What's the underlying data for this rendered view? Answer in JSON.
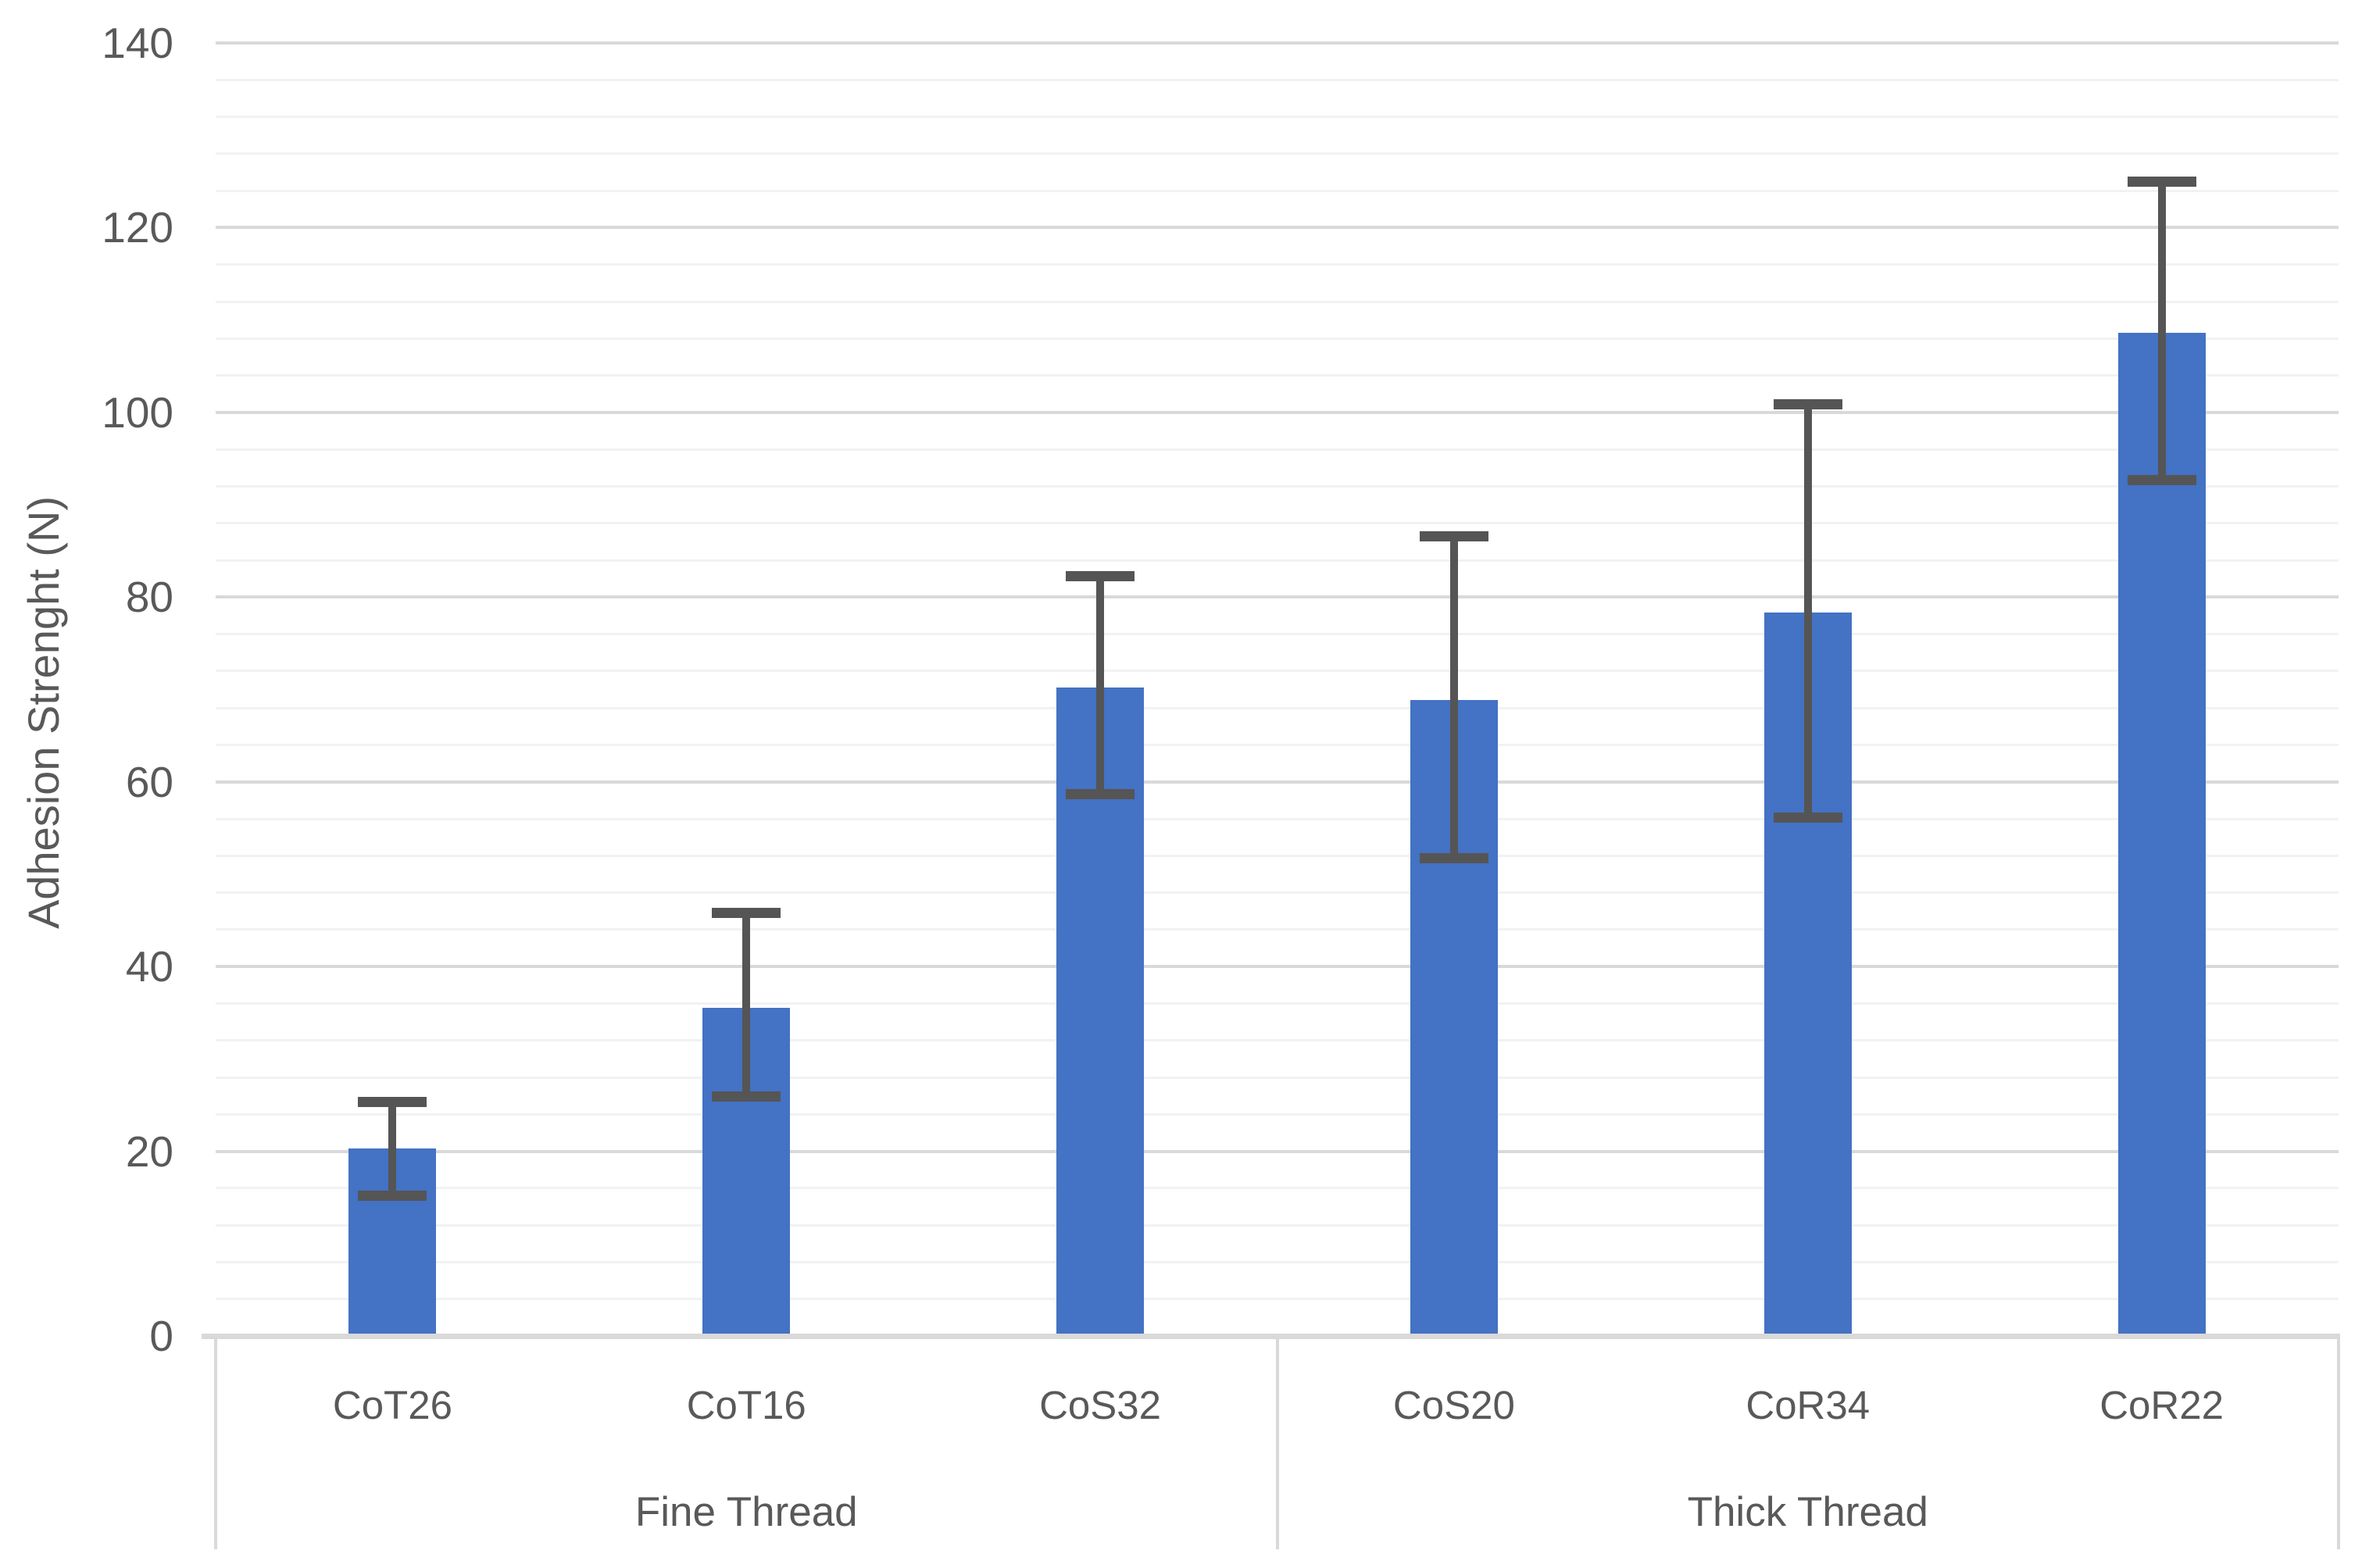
{
  "chart_data": {
    "type": "bar",
    "title": "",
    "ylabel": "Adhesion Strenght (N)",
    "xlabel": "",
    "ylim": [
      0,
      140
    ],
    "y_major_ticks": [
      0,
      20,
      40,
      60,
      80,
      100,
      120,
      140
    ],
    "y_minor_unit": 4,
    "grid": true,
    "legend": "none",
    "categories": [
      "CoT26",
      "CoT16",
      "CoS32",
      "CoS20",
      "CoR34",
      "CoR22"
    ],
    "values": [
      20.3,
      35.5,
      70.2,
      68.9,
      78.3,
      108.6
    ],
    "error_bars": {
      "upper": [
        25.3,
        45.8,
        82.3,
        86.6,
        100.9,
        125.0
      ],
      "lower": [
        15.2,
        25.9,
        58.7,
        51.7,
        56.1,
        92.7
      ]
    },
    "groups": [
      {
        "label": "Fine Thread",
        "categories": [
          "CoT26",
          "CoT16",
          "CoS32"
        ]
      },
      {
        "label": "Thick Thread",
        "categories": [
          "CoS20",
          "CoR34",
          "CoR22"
        ]
      }
    ],
    "colors": {
      "bar": "#4472C4",
      "error_bar": "#555555",
      "gridline_major": "#D9D9D9",
      "gridline_minor": "#F2F2F2",
      "axis_line": "#D9D9D9",
      "text": "#595959"
    }
  }
}
